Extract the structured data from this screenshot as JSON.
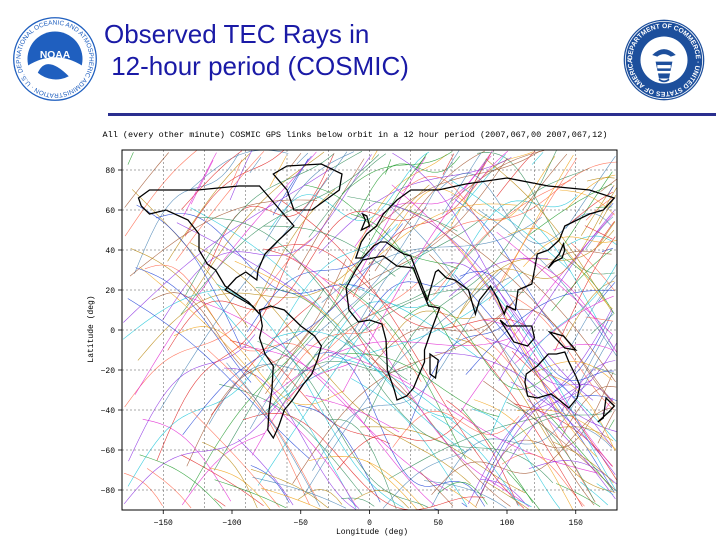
{
  "slide": {
    "title_line1": "Observed TEC Rays in",
    "title_line2": " 12-hour period (COSMIC)"
  },
  "logos": {
    "left": {
      "icon": "noaa-logo",
      "text": "NATIONAL OCEANIC AND ATMOSPHERIC ADMINISTRATION · U.S. DEPARTMENT OF COMMERCE"
    },
    "right": {
      "icon": "department-of-commerce-seal",
      "text": "DEPARTMENT OF COMMERCE · UNITED STATES OF AMERICA"
    }
  },
  "colors": {
    "title": "#1a1aa6",
    "rule": "#2a2f8f",
    "noaa_blue": "#1f5fbf",
    "doc_blue": "#1d4f9c"
  },
  "chart_data": {
    "type": "line",
    "title": "All (every other minute) COSMIC GPS links below orbit in a 12 hour period (2007,067,00 2007,067,12)",
    "xlabel": "Longitude (deg)",
    "ylabel": "Latitude (deg)",
    "xlim": [
      -180,
      180
    ],
    "ylim": [
      -90,
      90
    ],
    "xticks": [
      -150,
      -100,
      -50,
      0,
      50,
      100,
      150
    ],
    "yticks": [
      80,
      60,
      40,
      20,
      0,
      -20,
      -40,
      -60,
      -80
    ],
    "ytick_labels": [
      "80",
      "60",
      "40",
      "20",
      "0",
      "−20",
      "−40",
      "−60",
      "−80"
    ],
    "grid": true,
    "background_map": "world coastlines",
    "series_colors": [
      "#e0201f",
      "#1f9a2a",
      "#1c3fd6",
      "#e020d0",
      "#18c4d8",
      "#f0a010",
      "#8a2be2",
      "#b8860b",
      "#2e8b57",
      "#ff6347",
      "#4682b4",
      "#a0522d"
    ]
  }
}
